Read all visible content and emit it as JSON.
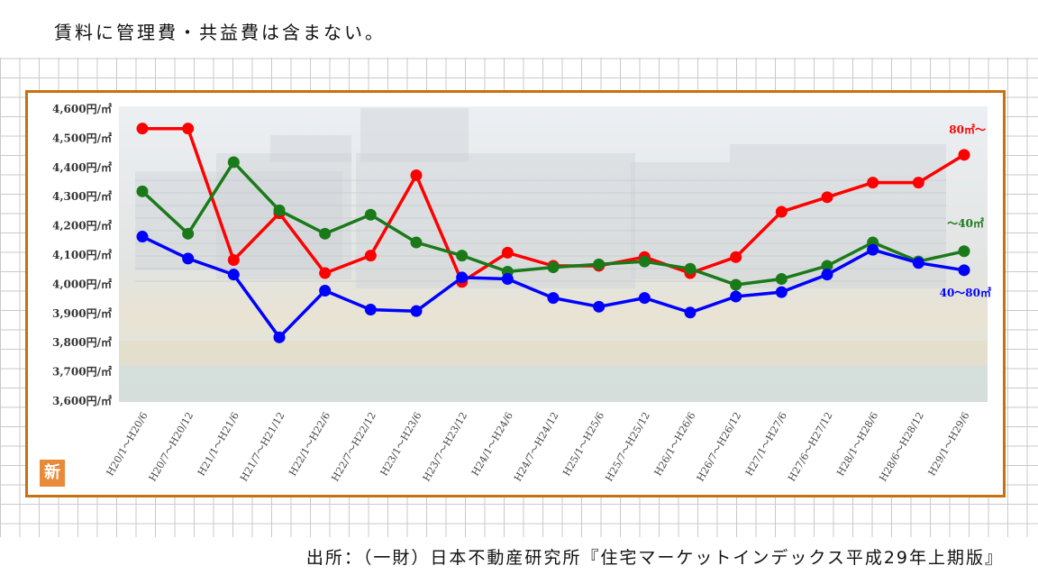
{
  "note": "賃料に管理費・共益費は含まない。",
  "source": "出所：（一財）日本不動産研究所『住宅マーケットインデックス平成29年上期版』",
  "badge": "新",
  "colors": {
    "frame": "#c9700f",
    "large": "#ff0000",
    "small": "#1a7a1a",
    "medium": "#0000ff",
    "badge": "#e98a3a"
  },
  "chart_data": {
    "type": "line",
    "title": "",
    "xlabel": "",
    "ylabel": "",
    "ylim": [
      3600,
      4600
    ],
    "yticks": [
      4600,
      4500,
      4400,
      4300,
      4200,
      4100,
      4000,
      3900,
      3800,
      3700,
      3600
    ],
    "ytick_labels": [
      "4,600円/㎡",
      "4,500円/㎡",
      "4,400円/㎡",
      "4,300円/㎡",
      "4,200円/㎡",
      "4,100円/㎡",
      "4,000円/㎡",
      "3,900円/㎡",
      "3,800円/㎡",
      "3,700円/㎡",
      "3,600円/㎡"
    ],
    "grid": false,
    "categories": [
      "H20/1～H20/6",
      "H20/7～H20/12",
      "H21/1～H21/6",
      "H21/7～H21/12",
      "H22/1～H22/6",
      "H22/7～H22/12",
      "H23/1～H23/6",
      "H23/7～H23/12",
      "H24/1～H24/6",
      "H24/7～H24/12",
      "H25/1～H25/6",
      "H25/7～H25/12",
      "H26/1～H26/6",
      "H26/7～H26/12",
      "H27/1～H27/6",
      "H27/6～H27/12",
      "H28/1～H28/6",
      "H28/6～H28/12",
      "H29/1～H29/6"
    ],
    "series": [
      {
        "name": "80㎡～",
        "key": "large",
        "values": [
          4530,
          4530,
          4080,
          4240,
          4035,
          4095,
          4370,
          4005,
          4105,
          4060,
          4060,
          4090,
          4035,
          4090,
          4245,
          4295,
          4345,
          4345,
          4440
        ]
      },
      {
        "name": "～40㎡",
        "key": "small",
        "values": [
          4315,
          4170,
          4415,
          4250,
          4170,
          4235,
          4140,
          4095,
          4040,
          4055,
          4065,
          4075,
          4050,
          3995,
          4015,
          4060,
          4140,
          4075,
          4110
        ]
      },
      {
        "name": "40～80㎡",
        "key": "medium",
        "values": [
          4160,
          4085,
          4030,
          3815,
          3975,
          3910,
          3905,
          4020,
          4015,
          3950,
          3920,
          3950,
          3900,
          3955,
          3970,
          4030,
          4115,
          4070,
          4045
        ]
      }
    ]
  }
}
